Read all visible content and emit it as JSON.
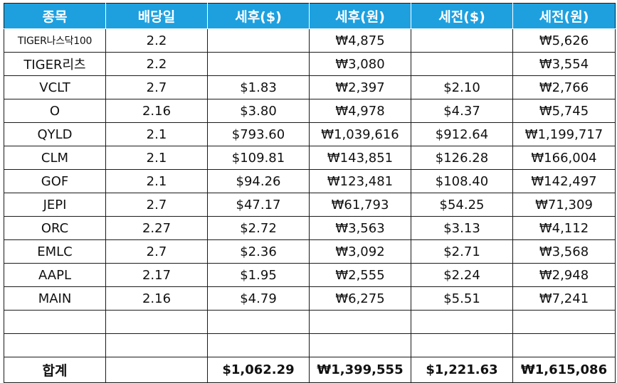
{
  "table": {
    "headers": [
      "종목",
      "배당일",
      "세후($)",
      "세후(원)",
      "세전($)",
      "세전(원)"
    ],
    "rows": [
      [
        "TIGER나스닥100",
        "2.2",
        "",
        "₩4,875",
        "",
        "₩5,626"
      ],
      [
        "TIGER리츠",
        "2.2",
        "",
        "₩3,080",
        "",
        "₩3,554"
      ],
      [
        "VCLT",
        "2.7",
        "$1.83",
        "₩2,397",
        "$2.10",
        "₩2,766"
      ],
      [
        "O",
        "2.16",
        "$3.80",
        "₩4,978",
        "$4.37",
        "₩5,745"
      ],
      [
        "QYLD",
        "2.1",
        "$793.60",
        "₩1,039,616",
        "$912.64",
        "₩1,199,717"
      ],
      [
        "CLM",
        "2.1",
        "$109.81",
        "₩143,851",
        "$126.28",
        "₩166,004"
      ],
      [
        "GOF",
        "2.1",
        "$94.26",
        "₩123,481",
        "$108.40",
        "₩142,497"
      ],
      [
        "JEPI",
        "2.7",
        "$47.17",
        "₩61,793",
        "$54.25",
        "₩71,309"
      ],
      [
        "ORC",
        "2.27",
        "$2.72",
        "₩3,563",
        "$3.13",
        "₩4,112"
      ],
      [
        "EMLC",
        "2.7",
        "$2.36",
        "₩3,092",
        "$2.71",
        "₩3,568"
      ],
      [
        "AAPL",
        "2.17",
        "$1.95",
        "₩2,555",
        "$2.24",
        "₩2,948"
      ],
      [
        "MAIN",
        "2.16",
        "$4.79",
        "₩6,275",
        "$5.51",
        "₩7,241"
      ],
      [
        "",
        "",
        "",
        "",
        "",
        ""
      ],
      [
        "",
        "",
        "",
        "",
        "",
        ""
      ]
    ],
    "total": [
      "합계",
      "",
      "$1,062.29",
      "₩1,399,555",
      "$1,221.63",
      "₩1,615,086"
    ]
  },
  "colors": {
    "header_bg": "#1ea0df",
    "header_text": "#ffffff",
    "grid": "#1a1a1a"
  }
}
